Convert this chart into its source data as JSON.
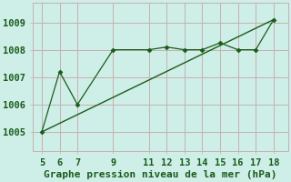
{
  "x": [
    5,
    6,
    7,
    9,
    11,
    12,
    13,
    14,
    15,
    16,
    17,
    18
  ],
  "y_data": [
    1005.0,
    1007.2,
    1006.0,
    1008.0,
    1008.0,
    1008.1,
    1008.0,
    1008.0,
    1008.25,
    1008.0,
    1008.0,
    1009.1
  ],
  "y_trend_x": [
    5,
    18
  ],
  "y_trend_y": [
    1005.0,
    1009.1
  ],
  "xticks": [
    5,
    6,
    7,
    9,
    11,
    12,
    13,
    14,
    15,
    16,
    17,
    18
  ],
  "yticks": [
    1005,
    1006,
    1007,
    1008,
    1009
  ],
  "ylim": [
    1004.3,
    1009.7
  ],
  "xlim": [
    4.5,
    18.8
  ],
  "line_color": "#1a5c1a",
  "bg_color": "#ceeee8",
  "grid_color": "#c8b0b0",
  "xlabel": "Graphe pression niveau de la mer (hPa)",
  "tick_fontsize": 7.5,
  "xlabel_fontsize": 8
}
